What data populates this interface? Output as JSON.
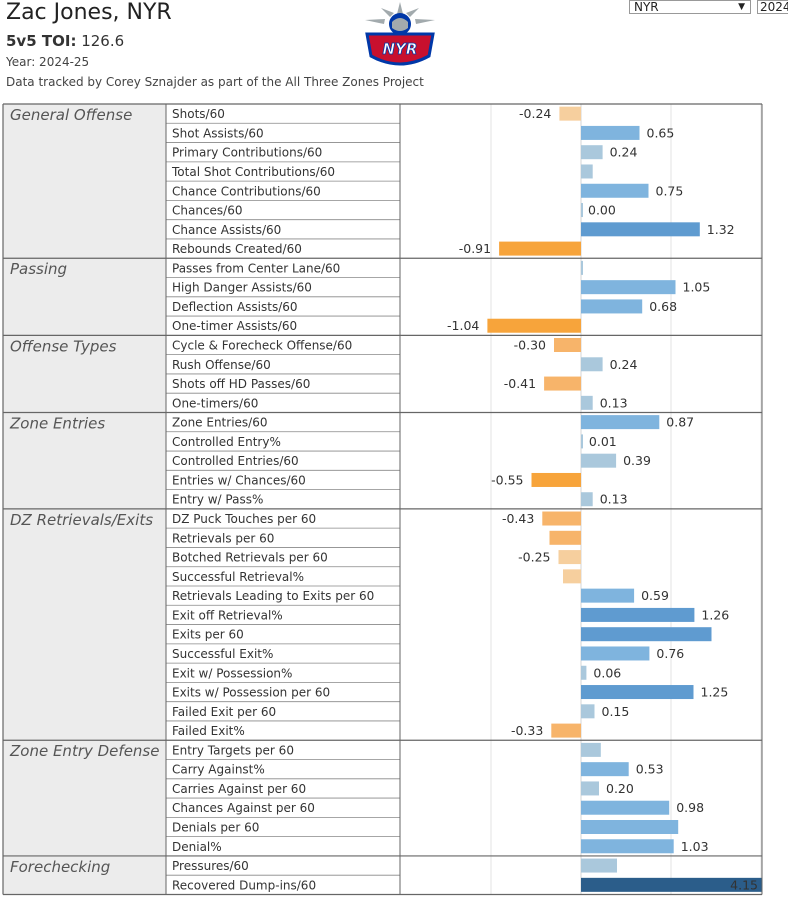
{
  "header": {
    "player_title": "Zac Jones, NYR",
    "toi_label": "5v5 TOI:",
    "toi_value": "126.6",
    "year_text": "Year: 2024-25",
    "credit_text": "Data tracked by Corey Sznajder as part of the All Three Zones Project"
  },
  "logo": {
    "text": "NYR",
    "colors": {
      "red": "#c8102e",
      "blue": "#0038a8",
      "silver": "#a2aaad"
    }
  },
  "filters": {
    "team_value": "NYR",
    "year_value": "2024"
  },
  "colors": {
    "positive_light": "#aac8dc",
    "positive_mid": "#7fb4de",
    "positive_strong": "#5f9bd0",
    "positive_dark": "#2b5d8a",
    "negative_light": "#f6cf9e",
    "negative_mid": "#f7b46a",
    "negative_strong": "#f7a43b"
  },
  "chart_data": {
    "type": "bar",
    "orientation": "horizontal",
    "x_axis": {
      "range": [
        -1.4,
        3.0
      ]
    },
    "groups": [
      {
        "category": "General Offense",
        "metrics": [
          {
            "name": "Shots/60",
            "value": -0.24,
            "label": "-0.24"
          },
          {
            "name": "Shot Assists/60",
            "value": 0.65,
            "label": "0.65"
          },
          {
            "name": "Primary Contributions/60",
            "value": 0.24,
            "label": "0.24"
          },
          {
            "name": "Total Shot Contributions/60",
            "value": 0.13,
            "label": ""
          },
          {
            "name": "Chance Contributions/60",
            "value": 0.75,
            "label": "0.75"
          },
          {
            "name": "Chances/60",
            "value": 0.0,
            "label": "0.00"
          },
          {
            "name": "Chance Assists/60",
            "value": 1.32,
            "label": "1.32"
          },
          {
            "name": "Rebounds Created/60",
            "value": -0.91,
            "label": "-0.91"
          }
        ]
      },
      {
        "category": "Passing",
        "metrics": [
          {
            "name": "Passes from Center Lane/60",
            "value": 0.02,
            "label": ""
          },
          {
            "name": "High Danger Assists/60",
            "value": 1.05,
            "label": "1.05"
          },
          {
            "name": "Deflection Assists/60",
            "value": 0.68,
            "label": "0.68"
          },
          {
            "name": "One-timer Assists/60",
            "value": -1.04,
            "label": "-1.04"
          }
        ]
      },
      {
        "category": "Offense Types",
        "metrics": [
          {
            "name": "Cycle & Forecheck Offense/60",
            "value": -0.3,
            "label": "-0.30"
          },
          {
            "name": "Rush Offense/60",
            "value": 0.24,
            "label": "0.24"
          },
          {
            "name": "Shots off HD Passes/60",
            "value": -0.41,
            "label": "-0.41"
          },
          {
            "name": "One-timers/60",
            "value": 0.13,
            "label": "0.13"
          }
        ]
      },
      {
        "category": "Zone Entries",
        "metrics": [
          {
            "name": "Zone Entries/60",
            "value": 0.87,
            "label": "0.87"
          },
          {
            "name": "Controlled Entry%",
            "value": 0.01,
            "label": "0.01"
          },
          {
            "name": "Controlled Entries/60",
            "value": 0.39,
            "label": "0.39"
          },
          {
            "name": "Entries w/ Chances/60",
            "value": -0.55,
            "label": "-0.55"
          },
          {
            "name": "Entry w/ Pass%",
            "value": 0.13,
            "label": "0.13"
          }
        ]
      },
      {
        "category": "DZ Retrievals/Exits",
        "metrics": [
          {
            "name": "DZ Puck Touches per 60",
            "value": -0.43,
            "label": "-0.43"
          },
          {
            "name": "Retrievals per 60",
            "value": -0.35,
            "label": ""
          },
          {
            "name": "Botched Retrievals per 60",
            "value": -0.25,
            "label": "-0.25"
          },
          {
            "name": "Successful Retrieval%",
            "value": -0.2,
            "label": ""
          },
          {
            "name": "Retrievals Leading to Exits per 60",
            "value": 0.59,
            "label": "0.59"
          },
          {
            "name": "Exit off Retrieval%",
            "value": 1.26,
            "label": "1.26"
          },
          {
            "name": "Exits per 60",
            "value": 1.45,
            "label": ""
          },
          {
            "name": "Successful Exit%",
            "value": 0.76,
            "label": "0.76"
          },
          {
            "name": "Exit w/ Possession%",
            "value": 0.06,
            "label": "0.06"
          },
          {
            "name": "Exits w/ Possession per 60",
            "value": 1.25,
            "label": "1.25"
          },
          {
            "name": "Failed Exit per 60",
            "value": 0.15,
            "label": "0.15"
          },
          {
            "name": "Failed Exit%",
            "value": -0.33,
            "label": "-0.33"
          }
        ]
      },
      {
        "category": "Zone Entry Defense",
        "metrics": [
          {
            "name": "Entry Targets per 60",
            "value": 0.22,
            "label": ""
          },
          {
            "name": "Carry Against%",
            "value": 0.53,
            "label": "0.53"
          },
          {
            "name": "Carries Against per 60",
            "value": 0.2,
            "label": "0.20"
          },
          {
            "name": "Chances Against per 60",
            "value": 0.98,
            "label": "0.98"
          },
          {
            "name": "Denials per 60",
            "value": 1.08,
            "label": ""
          },
          {
            "name": "Denial%",
            "value": 1.03,
            "label": "1.03"
          }
        ]
      },
      {
        "category": "Forechecking",
        "metrics": [
          {
            "name": "Pressures/60",
            "value": 0.4,
            "label": ""
          },
          {
            "name": "Recovered Dump-ins/60",
            "value": 4.15,
            "label": "4.15"
          }
        ]
      }
    ]
  }
}
